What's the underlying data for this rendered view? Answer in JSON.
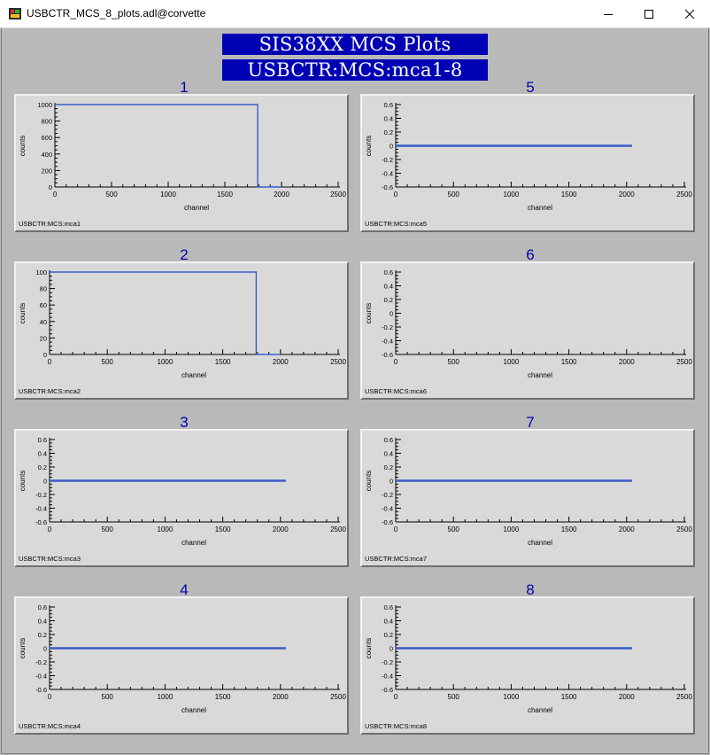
{
  "window": {
    "title": "USBCTR_MCS_8_plots.adl@corvette"
  },
  "banner": {
    "line1": "SIS38XX MCS Plots",
    "line2": "USBCTR:MCS:mca1-8"
  },
  "chart_data": [
    {
      "label": "1",
      "type": "line",
      "pv": "USBCTR:MCS:mca1",
      "xlabel": "channel",
      "ylabel": "counts",
      "xlim": [
        0,
        2500
      ],
      "xticks": [
        0,
        500,
        1000,
        1500,
        2000,
        2500
      ],
      "ylim": [
        0,
        1000
      ],
      "yticks": [
        0,
        200,
        400,
        600,
        800,
        1000
      ],
      "series": [
        {
          "color": "#3b5cc8",
          "x": [
            0,
            1790,
            1790,
            2000
          ],
          "y": [
            1000,
            1000,
            0,
            0
          ]
        }
      ]
    },
    {
      "label": "2",
      "type": "line",
      "pv": "USBCTR:MCS:mca2",
      "xlabel": "channel",
      "ylabel": "counts",
      "xlim": [
        0,
        2500
      ],
      "xticks": [
        0,
        500,
        1000,
        1500,
        2000,
        2500
      ],
      "ylim": [
        0,
        100
      ],
      "yticks": [
        0,
        20,
        40,
        60,
        80,
        100
      ],
      "series": [
        {
          "color": "#3b5cc8",
          "x": [
            0,
            1790,
            1790,
            2000
          ],
          "y": [
            100,
            100,
            0,
            0
          ]
        }
      ]
    },
    {
      "label": "3",
      "type": "line",
      "pv": "USBCTR:MCS:mca3",
      "xlabel": "channel",
      "ylabel": "counts",
      "xlim": [
        0,
        2500
      ],
      "xticks": [
        0,
        500,
        1000,
        1500,
        2000,
        2500
      ],
      "ylim": [
        -0.6,
        0.6
      ],
      "yticks": [
        -0.6,
        -0.4,
        -0.2,
        0,
        0.2,
        0.4,
        0.6
      ],
      "series": [
        {
          "color": "#3b5cc8",
          "x": [
            0,
            2047
          ],
          "y": [
            0,
            0
          ]
        }
      ]
    },
    {
      "label": "4",
      "type": "line",
      "pv": "USBCTR:MCS:mca4",
      "xlabel": "channel",
      "ylabel": "counts",
      "xlim": [
        0,
        2500
      ],
      "xticks": [
        0,
        500,
        1000,
        1500,
        2000,
        2500
      ],
      "ylim": [
        -0.6,
        0.6
      ],
      "yticks": [
        -0.6,
        -0.4,
        -0.2,
        0,
        0.2,
        0.4,
        0.6
      ],
      "series": [
        {
          "color": "#3b5cc8",
          "x": [
            0,
            2047
          ],
          "y": [
            0,
            0
          ]
        }
      ]
    },
    {
      "label": "5",
      "type": "line",
      "pv": "USBCTR:MCS:mca5",
      "xlabel": "channel",
      "ylabel": "counts",
      "xlim": [
        0,
        2500
      ],
      "xticks": [
        0,
        500,
        1000,
        1500,
        2000,
        2500
      ],
      "ylim": [
        -0.6,
        0.6
      ],
      "yticks": [
        -0.6,
        -0.4,
        -0.2,
        0,
        0.2,
        0.4,
        0.6
      ],
      "series": [
        {
          "color": "#3b5cc8",
          "x": [
            0,
            2047
          ],
          "y": [
            0,
            0
          ]
        }
      ]
    },
    {
      "label": "6",
      "type": "line",
      "pv": "USBCTR:MCS:mca6",
      "xlabel": "channel",
      "ylabel": "counts",
      "xlim": [
        0,
        2500
      ],
      "xticks": [
        0,
        500,
        1000,
        1500,
        2000,
        2500
      ],
      "ylim": [
        -0.6,
        0.6
      ],
      "yticks": [
        -0.6,
        -0.4,
        -0.2,
        0,
        0.2,
        0.4,
        0.6
      ],
      "series": []
    },
    {
      "label": "7",
      "type": "line",
      "pv": "USBCTR:MCS:mca7",
      "xlabel": "channel",
      "ylabel": "counts",
      "xlim": [
        0,
        2500
      ],
      "xticks": [
        0,
        500,
        1000,
        1500,
        2000,
        2500
      ],
      "ylim": [
        -0.6,
        0.6
      ],
      "yticks": [
        -0.6,
        -0.4,
        -0.2,
        0,
        0.2,
        0.4,
        0.6
      ],
      "series": [
        {
          "color": "#3b5cc8",
          "x": [
            0,
            2047
          ],
          "y": [
            0,
            0
          ]
        }
      ]
    },
    {
      "label": "8",
      "type": "line",
      "pv": "USBCTR:MCS:mca8",
      "xlabel": "channel",
      "ylabel": "counts",
      "xlim": [
        0,
        2500
      ],
      "xticks": [
        0,
        500,
        1000,
        1500,
        2000,
        2500
      ],
      "ylim": [
        -0.6,
        0.6
      ],
      "yticks": [
        -0.6,
        -0.4,
        -0.2,
        0,
        0.2,
        0.4,
        0.6
      ],
      "series": [
        {
          "color": "#3b5cc8",
          "x": [
            0,
            2047
          ],
          "y": [
            0,
            0
          ]
        }
      ]
    }
  ]
}
